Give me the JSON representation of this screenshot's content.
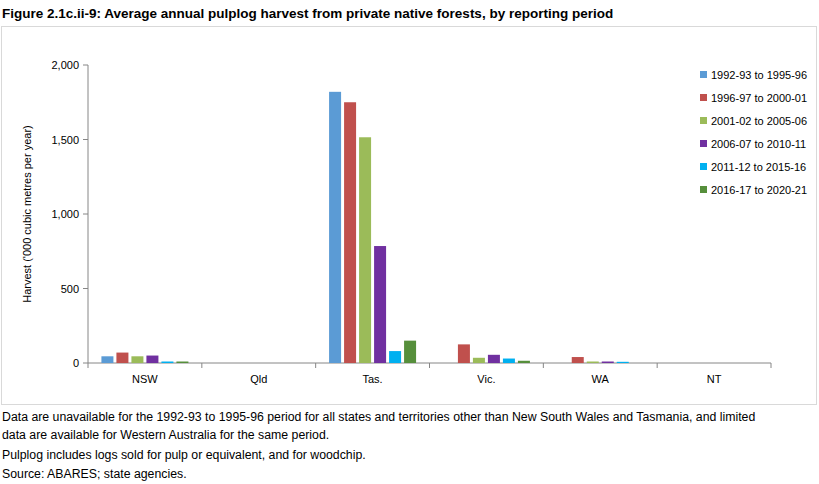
{
  "chart_data": {
    "type": "bar",
    "title": "Figure 2.1c.ii-9: Average annual pulplog harvest from private native forests, by reporting period",
    "y_label": "Harvest ('000 cubic metres per year)",
    "categories": [
      "NSW",
      "Qld",
      "Tas.",
      "Vic.",
      "WA",
      "NT"
    ],
    "series": [
      {
        "name": "1992-93 to 1995-96",
        "color": "#5b9bd5",
        "values": [
          45,
          null,
          1820,
          null,
          null,
          null
        ]
      },
      {
        "name": "1996-97 to 2000-01",
        "color": "#c0504d",
        "values": [
          70,
          0,
          1750,
          125,
          40,
          0
        ]
      },
      {
        "name": "2001-02 to 2005-06",
        "color": "#9bbb59",
        "values": [
          45,
          0,
          1515,
          35,
          10,
          0
        ]
      },
      {
        "name": "2006-07 to 2010-11",
        "color": "#7030a0",
        "values": [
          50,
          0,
          785,
          55,
          10,
          0
        ]
      },
      {
        "name": "2011-12 to 2015-16",
        "color": "#00b0f0",
        "values": [
          10,
          0,
          80,
          30,
          8,
          0
        ]
      },
      {
        "name": "2016-17 to 2020-21",
        "color": "#568f3b",
        "values": [
          10,
          0,
          150,
          15,
          0,
          0
        ]
      }
    ],
    "ylim": [
      0,
      2000
    ],
    "yticks": [
      0,
      500,
      {
        "value": 1000,
        "label": "1,000"
      },
      {
        "value": 1500,
        "label": "1,500"
      },
      {
        "value": 2000,
        "label": "2,000"
      }
    ],
    "grid": false,
    "legend": "top-right",
    "notes": [
      "Data are unavailable for the 1992-93 to 1995-96 period for all states and territories other than New South Wales and Tasmania, and limited",
      "data are available for Western Australia for the same period.",
      "Pulplog includes logs sold for pulp or equivalent, and for woodchip.",
      "Source: ABARES; state agencies."
    ]
  }
}
